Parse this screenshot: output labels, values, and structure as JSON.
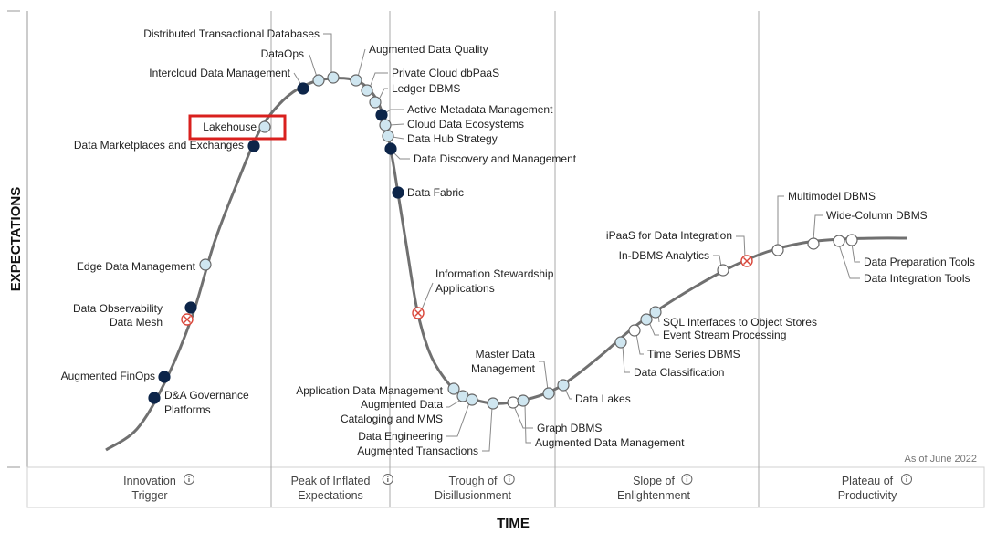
{
  "chart_data": {
    "type": "line",
    "title": "",
    "xlabel": "TIME",
    "ylabel": "EXPECTATIONS",
    "note": "As of June 2022",
    "info_icon": "info-circle-icon",
    "colors": {
      "curve": "#707070",
      "phase_line": "#a8a8a8",
      "node_dark": "#0d2549",
      "node_light": "#cfe6f0",
      "node_white": "#ffffff",
      "node_stroke": "#666666",
      "obsolete": "#d9473b",
      "highlight": "#d9201e"
    },
    "marker_legend": {
      "dark": "dark filled circle",
      "light": "light blue circle",
      "white": "white circle",
      "obsolete": "circle with red cross"
    },
    "phases": [
      {
        "label": "Innovation\nTrigger"
      },
      {
        "label": "Peak of Inflated\nExpectations"
      },
      {
        "label": "Trough of\nDisillusionment"
      },
      {
        "label": "Slope of\nEnlightenment"
      },
      {
        "label": "Plateau of\nProductivity"
      }
    ],
    "highlight": "Lakehouse",
    "points": [
      {
        "label": "D&A Governance\nPlatforms",
        "marker": "dark"
      },
      {
        "label": "Augmented FinOps",
        "marker": "dark"
      },
      {
        "label": "Data Mesh",
        "marker": "obsolete"
      },
      {
        "label": "Data Observability",
        "marker": "dark"
      },
      {
        "label": "Edge Data Management",
        "marker": "light"
      },
      {
        "label": "Data Marketplaces and Exchanges",
        "marker": "dark"
      },
      {
        "label": "Lakehouse",
        "marker": "light"
      },
      {
        "label": "Intercloud Data Management",
        "marker": "dark"
      },
      {
        "label": "DataOps",
        "marker": "light"
      },
      {
        "label": "Distributed Transactional Databases",
        "marker": "light"
      },
      {
        "label": "Augmented Data Quality",
        "marker": "light"
      },
      {
        "label": "Private Cloud dbPaaS",
        "marker": "light"
      },
      {
        "label": "Ledger DBMS",
        "marker": "light"
      },
      {
        "label": "Active Metadata Management",
        "marker": "dark"
      },
      {
        "label": "Cloud Data Ecosystems",
        "marker": "light"
      },
      {
        "label": "Data Hub Strategy",
        "marker": "light"
      },
      {
        "label": "Data Discovery and Management",
        "marker": "dark"
      },
      {
        "label": "Data Fabric",
        "marker": "dark"
      },
      {
        "label": "Information Stewardship\nApplications",
        "marker": "obsolete"
      },
      {
        "label": "Application Data Management",
        "marker": "light"
      },
      {
        "label": "Augmented Data\nCataloging and MMS",
        "marker": "light"
      },
      {
        "label": "Data Engineering",
        "marker": "light"
      },
      {
        "label": "Augmented Transactions",
        "marker": "light"
      },
      {
        "label": "Graph DBMS",
        "marker": "white"
      },
      {
        "label": "Augmented Data Management",
        "marker": "light"
      },
      {
        "label": "Master Data\nManagement",
        "marker": "light"
      },
      {
        "label": "Data Lakes",
        "marker": "light"
      },
      {
        "label": "Data Classification",
        "marker": "light"
      },
      {
        "label": "Time Series DBMS",
        "marker": "white"
      },
      {
        "label": "Event Stream Processing",
        "marker": "light"
      },
      {
        "label": "SQL Interfaces to Object Stores",
        "marker": "light"
      },
      {
        "label": "In-DBMS Analytics",
        "marker": "white"
      },
      {
        "label": "iPaaS for Data Integration",
        "marker": "obsolete"
      },
      {
        "label": "Multimodel DBMS",
        "marker": "white"
      },
      {
        "label": "Wide-Column DBMS",
        "marker": "white"
      },
      {
        "label": "Data Integration Tools",
        "marker": "white"
      },
      {
        "label": "Data Preparation Tools",
        "marker": "white"
      }
    ]
  }
}
